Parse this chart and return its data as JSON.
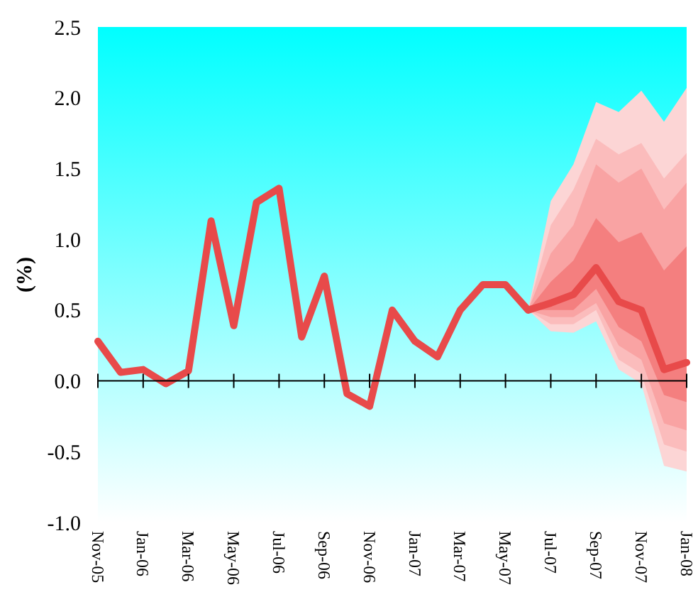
{
  "chart_data": {
    "type": "line",
    "ylabel": "(%)",
    "categories": [
      "Nov-05",
      null,
      "Jan-06",
      null,
      "Mar-06",
      null,
      "May-06",
      null,
      "Jul-06",
      null,
      "Sep-06",
      null,
      "Nov-06",
      null,
      "Jan-07",
      null,
      "Mar-07",
      null,
      "May-07",
      null,
      "Jul-07",
      null,
      "Sep-07",
      null,
      "Nov-07",
      null,
      "Jan-08"
    ],
    "ylim": [
      -1,
      2.5
    ],
    "yticks": [
      {
        "value": -1,
        "label": "-1.0"
      },
      {
        "value": -0.5,
        "label": "-0.5"
      },
      {
        "value": 0,
        "label": "0.0"
      },
      {
        "value": 0.5,
        "label": "0.5"
      },
      {
        "value": 1,
        "label": "1.0"
      },
      {
        "value": 1.5,
        "label": "1.5"
      },
      {
        "value": 2,
        "label": "2.0"
      },
      {
        "value": 2.5,
        "label": "2.5"
      }
    ],
    "marker": "none",
    "line_style": "solid",
    "series": [
      {
        "color": "#fcd5d5",
        "values": [
          null,
          null,
          null,
          null,
          null,
          null,
          null,
          null,
          null,
          null,
          null,
          null,
          null,
          null,
          null,
          null,
          null,
          null,
          null,
          null,
          null,
          null,
          null,
          null,
          null,
          null,
          null
        ],
        "upper": [
          null,
          null,
          null,
          null,
          null,
          null,
          null,
          null,
          null,
          null,
          null,
          null,
          null,
          null,
          null,
          null,
          null,
          null,
          null,
          0.5,
          1.27,
          1.53,
          1.97,
          1.9,
          2.05,
          1.83,
          2.07
        ],
        "lower": [
          null,
          null,
          null,
          null,
          null,
          null,
          null,
          null,
          null,
          null,
          null,
          null,
          null,
          null,
          null,
          null,
          null,
          null,
          null,
          0.5,
          0.35,
          0.34,
          0.42,
          0.08,
          -0.02,
          -0.6,
          -0.64
        ]
      },
      {
        "color": "#fbbcbc",
        "values": [
          null,
          null,
          null,
          null,
          null,
          null,
          null,
          null,
          null,
          null,
          null,
          null,
          null,
          null,
          null,
          null,
          null,
          null,
          null,
          null,
          null,
          null,
          null,
          null,
          null,
          null,
          null
        ],
        "upper": [
          null,
          null,
          null,
          null,
          null,
          null,
          null,
          null,
          null,
          null,
          null,
          null,
          null,
          null,
          null,
          null,
          null,
          null,
          null,
          0.5,
          1.1,
          1.35,
          1.71,
          1.6,
          1.68,
          1.43,
          1.61
        ],
        "lower": [
          null,
          null,
          null,
          null,
          null,
          null,
          null,
          null,
          null,
          null,
          null,
          null,
          null,
          null,
          null,
          null,
          null,
          null,
          null,
          0.5,
          0.4,
          0.4,
          0.5,
          0.15,
          0.05,
          -0.45,
          -0.5
        ]
      },
      {
        "color": "#f9a3a3",
        "values": [
          null,
          null,
          null,
          null,
          null,
          null,
          null,
          null,
          null,
          null,
          null,
          null,
          null,
          null,
          null,
          null,
          null,
          null,
          null,
          null,
          null,
          null,
          null,
          null,
          null,
          null,
          null
        ],
        "upper": [
          null,
          null,
          null,
          null,
          null,
          null,
          null,
          null,
          null,
          null,
          null,
          null,
          null,
          null,
          null,
          null,
          null,
          null,
          null,
          0.5,
          0.9,
          1.1,
          1.53,
          1.4,
          1.5,
          1.21,
          1.4
        ],
        "lower": [
          null,
          null,
          null,
          null,
          null,
          null,
          null,
          null,
          null,
          null,
          null,
          null,
          null,
          null,
          null,
          null,
          null,
          null,
          null,
          0.5,
          0.45,
          0.45,
          0.55,
          0.25,
          0.15,
          -0.3,
          -0.35
        ]
      },
      {
        "color": "#f47f7f",
        "values": [
          null,
          null,
          null,
          null,
          null,
          null,
          null,
          null,
          null,
          null,
          null,
          null,
          null,
          null,
          null,
          null,
          null,
          null,
          null,
          null,
          null,
          null,
          null,
          null,
          null,
          null,
          null
        ],
        "upper": [
          null,
          null,
          null,
          null,
          null,
          null,
          null,
          null,
          null,
          null,
          null,
          null,
          null,
          null,
          null,
          null,
          null,
          null,
          null,
          0.5,
          0.7,
          0.85,
          1.15,
          0.98,
          1.05,
          0.78,
          0.95
        ],
        "lower": [
          null,
          null,
          null,
          null,
          null,
          null,
          null,
          null,
          null,
          null,
          null,
          null,
          null,
          null,
          null,
          null,
          null,
          null,
          null,
          0.5,
          0.5,
          0.5,
          0.65,
          0.38,
          0.28,
          -0.1,
          -0.15
        ]
      },
      {
        "color": "#e84a4a",
        "values": [
          0.28,
          0.06,
          0.08,
          -0.02,
          0.07,
          1.13,
          0.39,
          1.26,
          1.36,
          0.31,
          0.74,
          -0.09,
          -0.18,
          0.5,
          0.28,
          0.17,
          0.5,
          0.68,
          0.68,
          0.5,
          0.55,
          0.61,
          0.8,
          0.56,
          0.5,
          0.08,
          0.13
        ]
      }
    ]
  }
}
